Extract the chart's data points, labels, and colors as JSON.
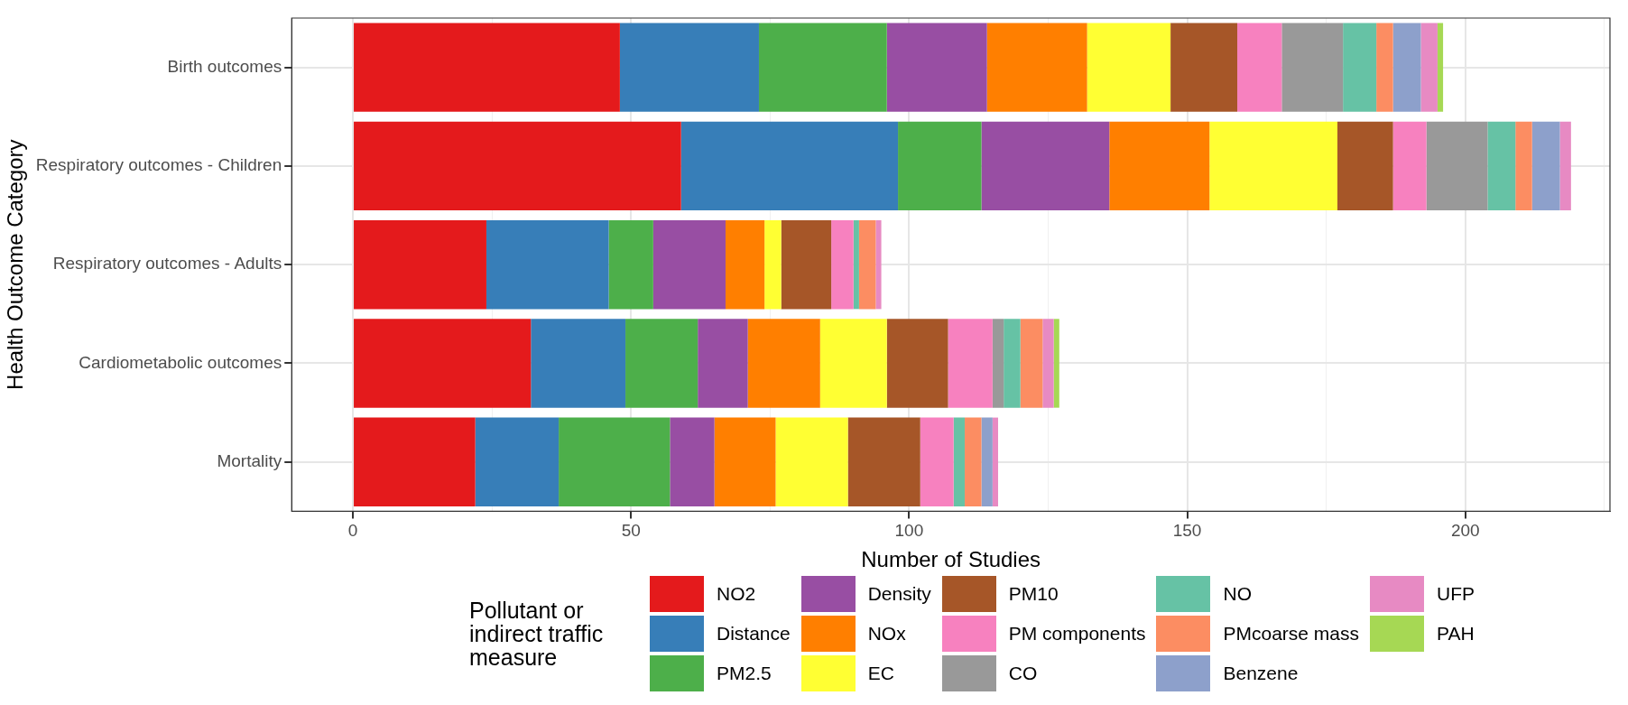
{
  "chart_data": {
    "type": "bar",
    "orientation": "horizontal",
    "stacked": true,
    "xlabel": "Number of Studies",
    "ylabel": "Health Outcome Category",
    "legend_title": "Pollutant or indirect traffic measure",
    "categories": [
      "Birth outcomes",
      "Respiratory outcomes - Children",
      "Respiratory outcomes - Adults",
      "Cardiometabolic outcomes",
      "Mortality"
    ],
    "series": [
      {
        "name": "NO2",
        "color": "#e41a1c",
        "values": [
          48,
          59,
          24,
          32,
          22
        ]
      },
      {
        "name": "Distance",
        "color": "#377eb8",
        "values": [
          25,
          39,
          22,
          17,
          15
        ]
      },
      {
        "name": "PM2.5",
        "color": "#4daf4a",
        "values": [
          23,
          15,
          8,
          13,
          20
        ]
      },
      {
        "name": "Density",
        "color": "#984ea3",
        "values": [
          18,
          23,
          13,
          9,
          8
        ]
      },
      {
        "name": "NOx",
        "color": "#ff7f00",
        "values": [
          18,
          18,
          7,
          13,
          11
        ]
      },
      {
        "name": "EC",
        "color": "#ffff33",
        "values": [
          15,
          23,
          3,
          12,
          13
        ]
      },
      {
        "name": "PM10",
        "color": "#a65628",
        "values": [
          12,
          10,
          9,
          11,
          13
        ]
      },
      {
        "name": "PM components",
        "color": "#f781bf",
        "values": [
          8,
          6,
          4,
          8,
          6
        ]
      },
      {
        "name": "CO",
        "color": "#999999",
        "values": [
          11,
          11,
          0,
          2,
          0
        ]
      },
      {
        "name": "NO",
        "color": "#66c2a5",
        "values": [
          6,
          5,
          1,
          3,
          2
        ]
      },
      {
        "name": "PMcoarse mass",
        "color": "#fc8d62",
        "values": [
          3,
          3,
          3,
          4,
          3
        ]
      },
      {
        "name": "Benzene",
        "color": "#8da0cb",
        "values": [
          5,
          5,
          0,
          0,
          2
        ]
      },
      {
        "name": "UFP",
        "color": "#e78ac3",
        "values": [
          3,
          2,
          1,
          2,
          1
        ]
      },
      {
        "name": "PAH",
        "color": "#a6d854",
        "values": [
          1,
          0,
          0,
          1,
          0
        ]
      }
    ],
    "xlim": [
      -11,
      226
    ],
    "xticks": [
      0,
      {
        "value": 25,
        "label": null
      },
      50,
      {
        "value": 75,
        "label": null
      },
      100,
      {
        "value": 125,
        "label": null
      },
      150,
      {
        "value": 175,
        "label": null
      },
      200,
      {
        "value": 225,
        "label": null
      }
    ],
    "grid": true,
    "legend": "bottom"
  }
}
